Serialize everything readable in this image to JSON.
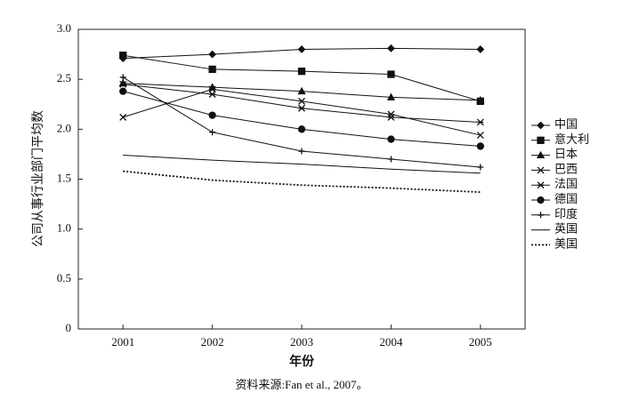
{
  "chart_data": {
    "type": "line",
    "y_label": "公司从事行业部门平均数",
    "x_label": "年份",
    "caption": "资料来源:Fan et al., 2007。",
    "x": [
      2001,
      2002,
      2003,
      2004,
      2005
    ],
    "xlim": [
      2000.5,
      2005.5
    ],
    "xticks": [
      2001,
      2002,
      2003,
      2004,
      2005
    ],
    "ylim": [
      0,
      3
    ],
    "yticks": [
      0,
      {
        "value": 0.5,
        "label": "0.5"
      },
      {
        "value": 1,
        "label": "1.0"
      },
      {
        "value": 1.5,
        "label": "1.5"
      },
      {
        "value": 2,
        "label": "2.0"
      },
      {
        "value": 2.5,
        "label": "2.5"
      },
      {
        "value": 3,
        "label": "3.0"
      }
    ],
    "legend": "right",
    "series": [
      {
        "name": "中国",
        "color": "#111111",
        "marker": "diamond",
        "dash": "solid",
        "values": [
          2.71,
          2.75,
          2.8,
          2.81,
          2.8
        ]
      },
      {
        "name": "意大利",
        "color": "#111111",
        "marker": "square",
        "dash": "solid",
        "values": [
          2.74,
          2.6,
          2.58,
          2.55,
          2.28
        ]
      },
      {
        "name": "日本",
        "color": "#111111",
        "marker": "triangle",
        "dash": "solid",
        "values": [
          2.46,
          2.42,
          2.38,
          2.32,
          2.29
        ]
      },
      {
        "name": "巴西",
        "color": "#111111",
        "marker": "x",
        "dash": "solid",
        "values": [
          2.12,
          2.4,
          2.28,
          2.15,
          1.94
        ]
      },
      {
        "name": "法国",
        "color": "#111111",
        "marker": "asterisk",
        "dash": "solid",
        "values": [
          2.45,
          2.35,
          2.21,
          2.12,
          2.07
        ]
      },
      {
        "name": "德国",
        "color": "#111111",
        "marker": "circle",
        "dash": "solid",
        "values": [
          2.38,
          2.14,
          2.0,
          1.9,
          1.83
        ]
      },
      {
        "name": "印度",
        "color": "#111111",
        "marker": "plus",
        "dash": "solid",
        "values": [
          2.52,
          1.97,
          1.78,
          1.7,
          1.62
        ]
      },
      {
        "name": "英国",
        "color": "#111111",
        "marker": "none",
        "dash": "solid",
        "values": [
          1.74,
          1.69,
          1.65,
          1.6,
          1.56
        ]
      },
      {
        "name": "美国",
        "color": "#111111",
        "marker": "none",
        "dash": "dotted",
        "values": [
          1.58,
          1.49,
          1.44,
          1.41,
          1.37
        ]
      }
    ]
  }
}
